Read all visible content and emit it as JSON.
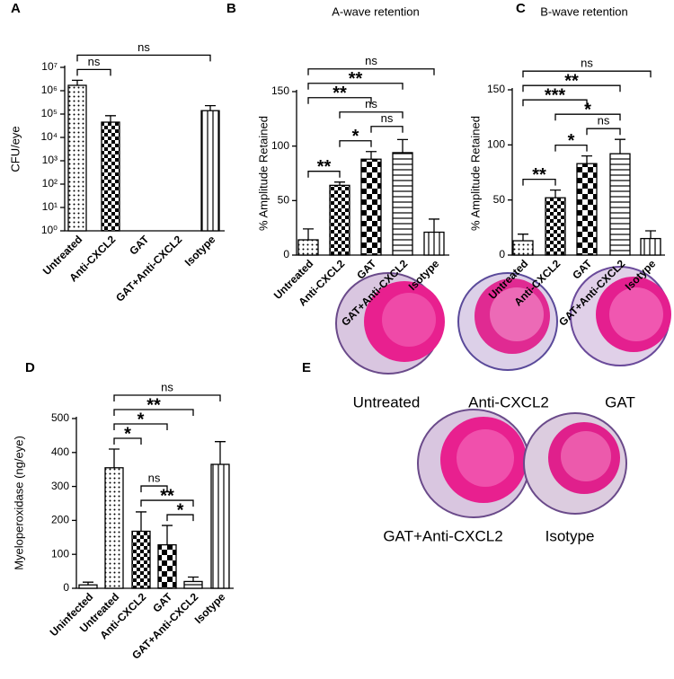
{
  "chart_data": [
    {
      "panel": "A",
      "type": "bar",
      "ylabel": "CFU/eye",
      "log_scale": true,
      "categories": [
        "Untreated",
        "Anti-CXCL2",
        "GAT",
        "GAT+Anti-CXCL2",
        "Isotype"
      ],
      "values": [
        1700000,
        45000,
        null,
        null,
        140000
      ],
      "errors": [
        1100000,
        40000,
        null,
        null,
        90000
      ],
      "patterns": [
        "dots",
        "checker",
        "checker-large",
        "hlines",
        "vlines"
      ],
      "ylim": [
        1,
        10000000
      ],
      "yticks": [
        {
          "value": 1,
          "label": "10⁰"
        },
        {
          "value": 10,
          "label": "10¹"
        },
        {
          "value": 100,
          "label": "10²"
        },
        {
          "value": 1000,
          "label": "10³"
        },
        {
          "value": 10000,
          "label": "10⁴"
        },
        {
          "value": 100000,
          "label": "10⁵"
        },
        {
          "value": 1000000,
          "label": "10⁶"
        },
        {
          "value": 10000000,
          "label": "10⁷"
        }
      ],
      "annotations": [
        {
          "text": "ns",
          "pair": [
            0,
            1
          ]
        },
        {
          "text": "ns",
          "pair": [
            0,
            4
          ]
        }
      ]
    },
    {
      "panel": "B",
      "type": "bar",
      "title": "A-wave retention",
      "ylabel": "% Amplitude Retained",
      "categories": [
        "Untreated",
        "Anti-CXCL2",
        "GAT",
        "GAT+Anti-CXCL2",
        "Isotype"
      ],
      "values": [
        14,
        64,
        88,
        94,
        21
      ],
      "errors": [
        10,
        3,
        7,
        12,
        12
      ],
      "patterns": [
        "dots",
        "checker",
        "checker-large",
        "hlines",
        "vlines"
      ],
      "ylim": [
        0,
        150
      ],
      "yticks": [
        0,
        50,
        100,
        150
      ],
      "annotations": [
        {
          "text": "**",
          "pair": [
            0,
            1
          ]
        },
        {
          "text": "*",
          "pair": [
            1,
            2
          ]
        },
        {
          "text": "ns",
          "pair": [
            2,
            3
          ]
        },
        {
          "text": "ns",
          "pair": [
            1,
            3
          ]
        },
        {
          "text": "**",
          "pair": [
            0,
            2
          ]
        },
        {
          "text": "**",
          "pair": [
            0,
            3
          ]
        },
        {
          "text": "ns",
          "pair": [
            0,
            4
          ]
        }
      ]
    },
    {
      "panel": "C",
      "type": "bar",
      "title": "B-wave retention",
      "ylabel": "% Amplitude Retained",
      "categories": [
        "Untreated",
        "Anti-CXCL2",
        "GAT",
        "GAT+Anti-CXCL2",
        "Isotype"
      ],
      "values": [
        13,
        52,
        83,
        92,
        15
      ],
      "errors": [
        6,
        7,
        7,
        13,
        7
      ],
      "patterns": [
        "dots",
        "checker",
        "checker-large",
        "hlines",
        "vlines"
      ],
      "ylim": [
        0,
        150
      ],
      "yticks": [
        0,
        50,
        100,
        150
      ],
      "annotations": [
        {
          "text": "**",
          "pair": [
            0,
            1
          ]
        },
        {
          "text": "*",
          "pair": [
            1,
            2
          ]
        },
        {
          "text": "ns",
          "pair": [
            2,
            3
          ]
        },
        {
          "text": "*",
          "pair": [
            1,
            3
          ]
        },
        {
          "text": "***",
          "pair": [
            0,
            2
          ]
        },
        {
          "text": "**",
          "pair": [
            0,
            3
          ]
        },
        {
          "text": "ns",
          "pair": [
            0,
            4
          ]
        }
      ]
    },
    {
      "panel": "D",
      "type": "bar",
      "ylabel": "Myeloperoxidase (ng/eye)",
      "categories": [
        "Uninfected",
        "Untreated",
        "Anti-CXCL2",
        "GAT",
        "GAT+Anti-CXCL2",
        "Isotype"
      ],
      "values": [
        10,
        355,
        168,
        128,
        20,
        365
      ],
      "errors": [
        8,
        55,
        57,
        57,
        13,
        67
      ],
      "patterns": [
        "none",
        "dots",
        "checker",
        "checker-large",
        "hlines",
        "vlines"
      ],
      "ylim": [
        0,
        500
      ],
      "yticks": [
        0,
        100,
        200,
        300,
        400,
        500
      ],
      "annotations": [
        {
          "text": "*",
          "pair": [
            3,
            4
          ]
        },
        {
          "text": "**",
          "pair": [
            2,
            4
          ]
        },
        {
          "text": "ns",
          "pair": [
            2,
            3
          ]
        },
        {
          "text": "*",
          "pair": [
            1,
            2
          ]
        },
        {
          "text": "*",
          "pair": [
            1,
            3
          ]
        },
        {
          "text": "**",
          "pair": [
            1,
            4
          ]
        },
        {
          "text": "ns",
          "pair": [
            1,
            5
          ]
        }
      ]
    }
  ],
  "figure_e": {
    "panel": "E",
    "images": [
      {
        "label": "Untreated"
      },
      {
        "label": "Anti-CXCL2"
      },
      {
        "label": "GAT"
      },
      {
        "label": "GAT+Anti-CXCL2"
      },
      {
        "label": "Isotype"
      }
    ]
  }
}
